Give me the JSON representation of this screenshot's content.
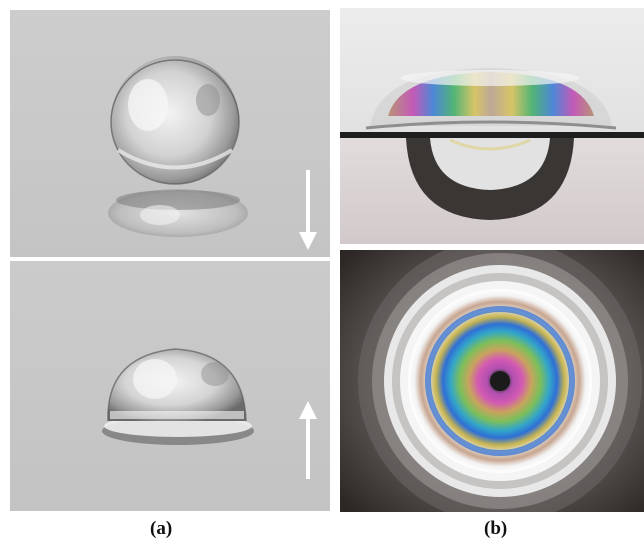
{
  "captions": {
    "a": "(a)",
    "b": "(b)"
  },
  "panels": {
    "a_top": {
      "arrow": "down"
    },
    "a_bottom": {
      "arrow": "up"
    }
  },
  "colors": {
    "background_grey": "#c9c9c9",
    "arrow": "#ffffff",
    "dark_bg": "#2c2624"
  }
}
